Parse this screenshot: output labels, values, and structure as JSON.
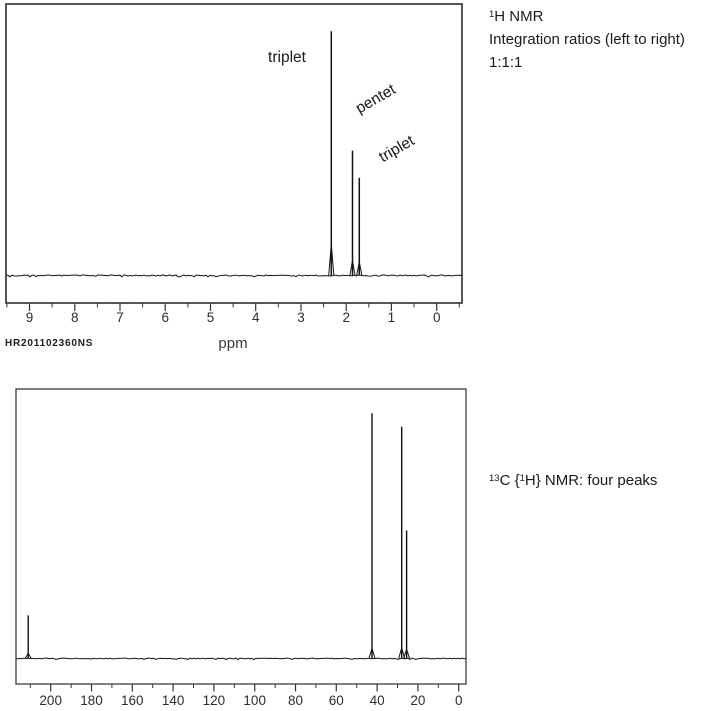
{
  "notes": {
    "h1": {
      "sup": "1",
      "title": "H NMR",
      "line2": "Integration ratios (left to right)",
      "line3": "1:1:1"
    },
    "c13": {
      "sup1": "13",
      "seg1": "C {",
      "sup2": "1",
      "seg2": "H} NMR: four peaks"
    }
  },
  "chart_data": [
    {
      "id": "h1",
      "type": "line",
      "title": "1H NMR spectrum",
      "xlabel": "ppm",
      "watermark": "HR201102360NS",
      "x_range": [
        9.52,
        -0.56
      ],
      "x_ticks_major": [
        9,
        8,
        7,
        6,
        5,
        4,
        3,
        2,
        1,
        0
      ],
      "x_minor_step": 0.5,
      "ylim": [
        0,
        1
      ],
      "grid": false,
      "integration_ratios": "1:1:1",
      "peaks": [
        {
          "ppm": 2.33,
          "height": 0.9,
          "foot": 0.115,
          "multiplicity": "triplet"
        },
        {
          "ppm": 1.86,
          "height": 0.46,
          "foot": 0.055,
          "multiplicity": "pentet"
        },
        {
          "ppm": 1.71,
          "height": 0.36,
          "foot": 0.05,
          "multiplicity": "triplet"
        }
      ],
      "peak_labels": [
        {
          "text": "triplet",
          "x": 287,
          "y": 62,
          "rotate": 0
        },
        {
          "text": "pentet",
          "x": 378,
          "y": 103,
          "rotate": -30
        },
        {
          "text": "triplet",
          "x": 399,
          "y": 153,
          "rotate": -30
        }
      ]
    },
    {
      "id": "c13",
      "type": "line",
      "title": "13C {1H} NMR spectrum",
      "x_range": [
        217,
        -3.6
      ],
      "x_ticks_major": [
        200,
        180,
        160,
        140,
        120,
        100,
        80,
        60,
        40,
        20,
        0
      ],
      "x_minor_step": 10,
      "ylim": [
        0,
        1
      ],
      "grid": false,
      "peaks": [
        {
          "ppm": 211,
          "height": 0.16,
          "foot": 0.02
        },
        {
          "ppm": 42.5,
          "height": 0.91,
          "foot": 0.037
        },
        {
          "ppm": 27.9,
          "height": 0.86,
          "foot": 0.04
        },
        {
          "ppm": 25.5,
          "height": 0.475,
          "foot": 0.035
        }
      ]
    }
  ]
}
